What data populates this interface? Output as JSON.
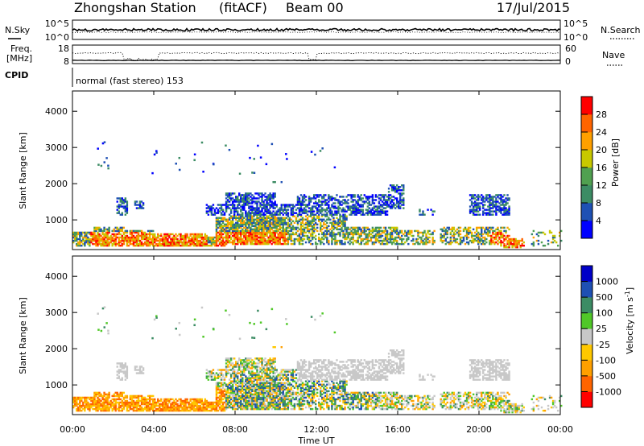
{
  "header": {
    "station": "Zhongshan Station",
    "mode": "(fitACF)",
    "beam": "Beam 00",
    "date": "17/Jul/2015"
  },
  "top_panels": {
    "nsky_label": "N.Sky",
    "nsky_ticks": [
      "10^5",
      "10^0"
    ],
    "nsearch_label": "N.Search",
    "nsearch_ticks": [
      "10^5",
      "10^0"
    ],
    "freq_label": "Freq.",
    "freq_unit": "[MHz]",
    "freq_ticks": [
      "18",
      "8"
    ],
    "nave_label": "Nave",
    "nave_ticks": [
      "60",
      "0"
    ],
    "cpid_label": "CPID",
    "cpid_text": "normal (fast stereo) 153"
  },
  "colors": {
    "power_scale": [
      "#0000ff",
      "#1e50b4",
      "#3c8c64",
      "#50a050",
      "#c8c800",
      "#ffa000",
      "#ff6400",
      "#ff0000"
    ],
    "velocity_scale": [
      "#ff0000",
      "#ff6400",
      "#ffa000",
      "#ffc800",
      "#c8c8c8",
      "#50c828",
      "#3c8c64",
      "#1e50b4",
      "#0000c8"
    ]
  },
  "chart_data": [
    {
      "type": "heatmap",
      "panel": "power",
      "ylabel": "Slant Range [km]",
      "ylim": [
        180,
        4560
      ],
      "y_ticks": [
        "1000",
        "2000",
        "3000",
        "4000"
      ],
      "xlim_hours": [
        0,
        24
      ],
      "colorbar_label": "Power [dB]",
      "colorbar_ticks": [
        "4",
        "8",
        "12",
        "16",
        "20",
        "24",
        "28"
      ],
      "colorbar_range": [
        0,
        32
      ]
    },
    {
      "type": "heatmap",
      "panel": "velocity",
      "ylabel": "Slant Range [km]",
      "ylim": [
        180,
        4560
      ],
      "y_ticks": [
        "1000",
        "2000",
        "3000",
        "4000"
      ],
      "xlim_hours": [
        0,
        24
      ],
      "colorbar_label": "Velocity [m s",
      "colorbar_label_sup": "-1",
      "colorbar_label_end": "]",
      "colorbar_ticks": [
        "1000",
        "500",
        "100",
        "25",
        "-25",
        "-100",
        "-500",
        "-1000"
      ]
    }
  ],
  "x_axis": {
    "ticks": [
      "00:00",
      "04:00",
      "08:00",
      "12:00",
      "16:00",
      "20:00",
      "00:00"
    ],
    "label": "Time UT"
  }
}
